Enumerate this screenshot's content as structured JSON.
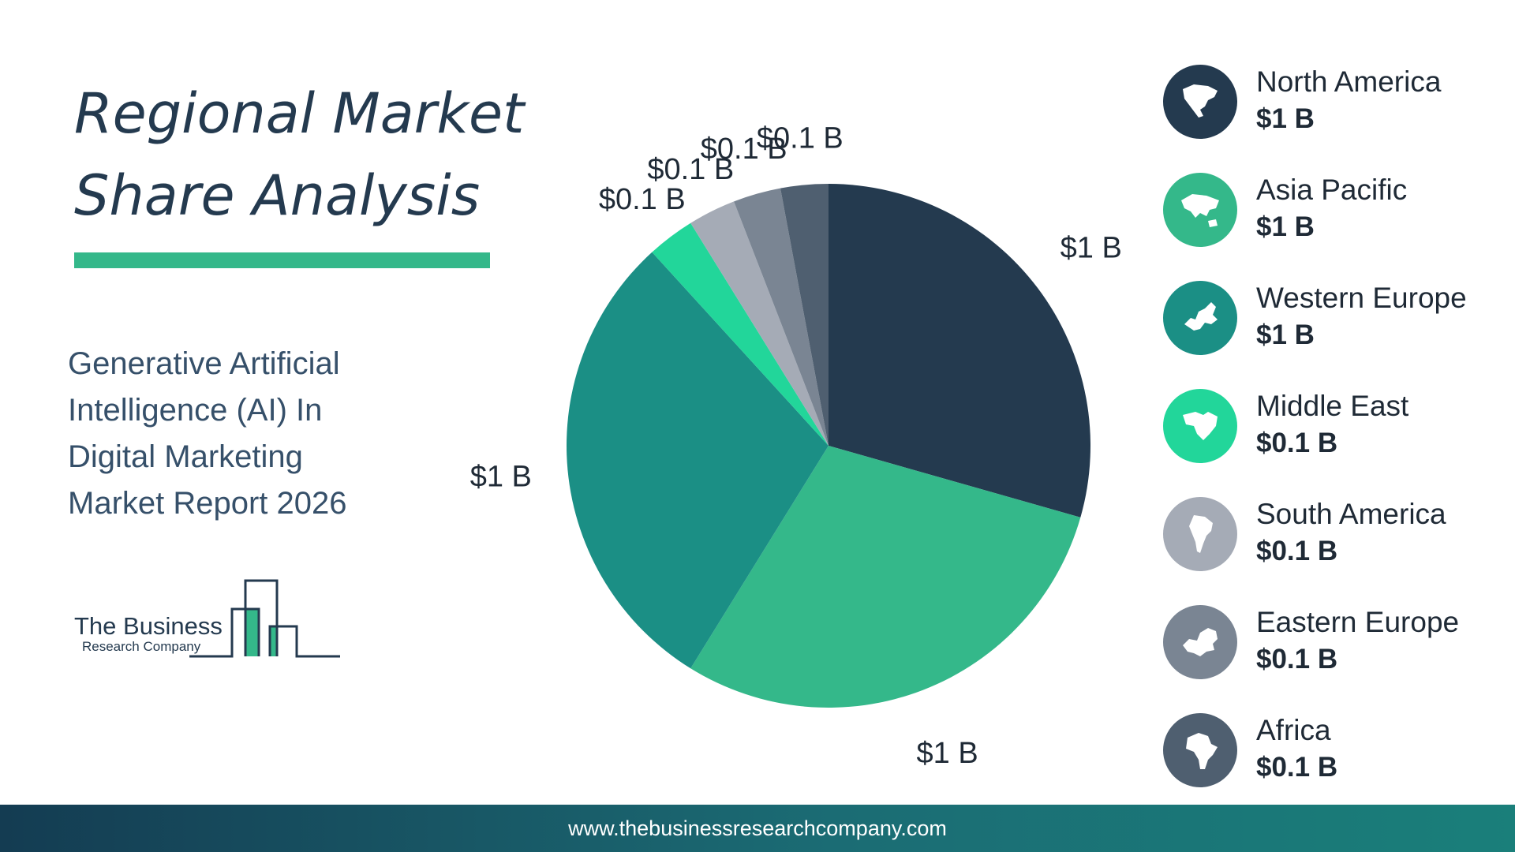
{
  "title": {
    "line1": "Regional Market",
    "line2": "Share Analysis"
  },
  "subtitle": {
    "lines": [
      "Generative Artificial",
      "Intelligence (AI) In",
      "Digital Marketing",
      "Market Report 2026"
    ]
  },
  "logo": {
    "line1": "The Business",
    "line2": "Research Company"
  },
  "legend": [
    {
      "name": "North America",
      "value": "$1 B",
      "color": "#243a4f",
      "icon": "north-america-map-icon"
    },
    {
      "name": "Asia Pacific",
      "value": "$1 B",
      "color": "#34b88a",
      "icon": "asia-pacific-map-icon"
    },
    {
      "name": "Western Europe",
      "value": "$1 B",
      "color": "#1b8f85",
      "icon": "western-europe-map-icon"
    },
    {
      "name": "Middle East",
      "value": "$0.1 B",
      "color": "#22d69a",
      "icon": "middle-east-map-icon"
    },
    {
      "name": "South America",
      "value": "$0.1 B",
      "color": "#a5abb6",
      "icon": "south-america-map-icon"
    },
    {
      "name": "Eastern Europe",
      "value": "$0.1 B",
      "color": "#7a8593",
      "icon": "eastern-europe-map-icon"
    },
    {
      "name": "Africa",
      "value": "$0.1 B",
      "color": "#4f5f70",
      "icon": "africa-map-icon"
    }
  ],
  "chart_data": {
    "type": "pie",
    "categories": [
      "North America",
      "Asia Pacific",
      "Western Europe",
      "Middle East",
      "South America",
      "Eastern Europe",
      "Africa"
    ],
    "values": [
      1,
      1,
      1,
      0.1,
      0.1,
      0.1,
      0.1
    ],
    "data_labels": [
      "$1 B",
      "$1 B",
      "$1 B",
      "$0.1 B",
      "$0.1 B",
      "$0.1 B",
      "$0.1 B"
    ],
    "colors": [
      "#243a4f",
      "#34b88a",
      "#1b8f85",
      "#22d69a",
      "#a5abb6",
      "#7a8593",
      "#4f5f70"
    ],
    "start": "12 o'clock",
    "direction": "clockwise",
    "legend_position": "right"
  },
  "footer": {
    "url": "www.thebusinessresearchcompany.com"
  }
}
